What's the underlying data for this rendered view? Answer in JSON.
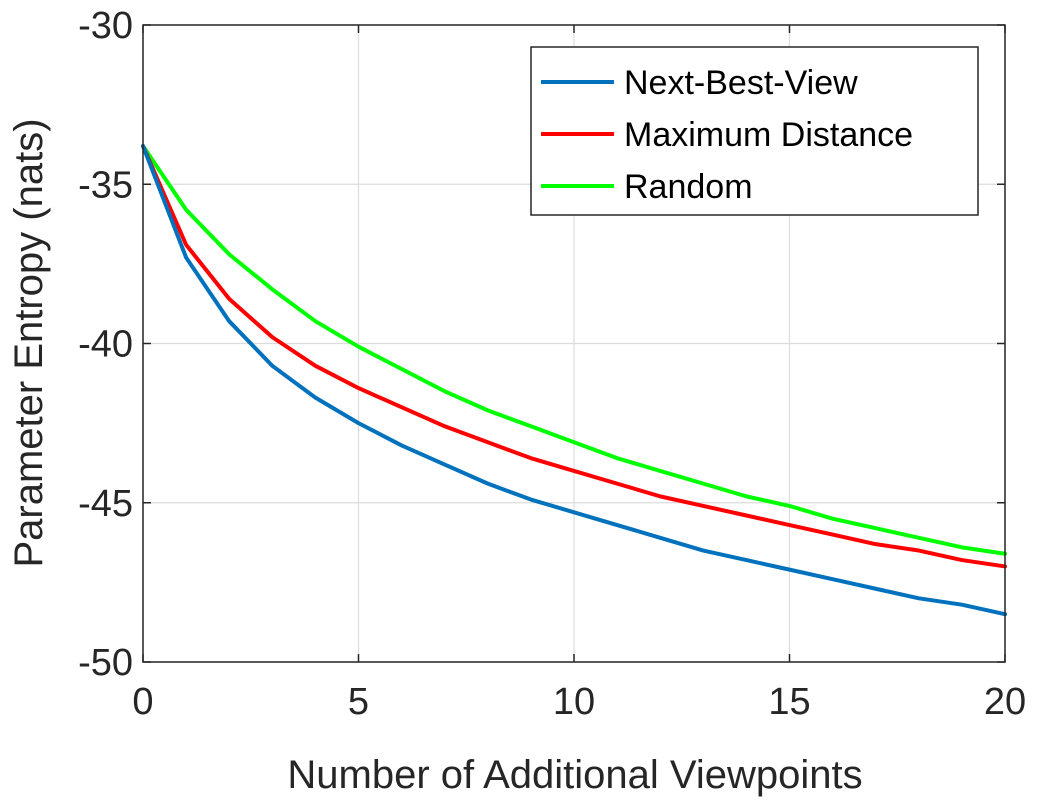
{
  "chart_data": {
    "type": "line",
    "title": "",
    "xlabel": "Number of Additional Viewpoints",
    "ylabel": "Parameter Entropy (nats)",
    "xlim": [
      0,
      20
    ],
    "ylim": [
      -50,
      -30
    ],
    "xticks": [
      0,
      5,
      10,
      15,
      20
    ],
    "yticks": [
      -30,
      -35,
      -40,
      -45,
      -50
    ],
    "grid": true,
    "legend_position": "top-right",
    "x": [
      0,
      1,
      2,
      3,
      4,
      5,
      6,
      7,
      8,
      9,
      10,
      11,
      12,
      13,
      14,
      15,
      16,
      17,
      18,
      19,
      20
    ],
    "series": [
      {
        "name": "Next-Best-View",
        "color": "#0072BD",
        "values": [
          -33.8,
          -37.3,
          -39.3,
          -40.7,
          -41.7,
          -42.5,
          -43.2,
          -43.8,
          -44.4,
          -44.9,
          -45.3,
          -45.7,
          -46.1,
          -46.5,
          -46.8,
          -47.1,
          -47.4,
          -47.7,
          -48.0,
          -48.2,
          -48.5
        ]
      },
      {
        "name": "Maximum Distance",
        "color": "#FF0000",
        "values": [
          -33.8,
          -36.9,
          -38.6,
          -39.8,
          -40.7,
          -41.4,
          -42.0,
          -42.6,
          -43.1,
          -43.6,
          -44.0,
          -44.4,
          -44.8,
          -45.1,
          -45.4,
          -45.7,
          -46.0,
          -46.3,
          -46.5,
          -46.8,
          -47.0
        ]
      },
      {
        "name": "Random",
        "color": "#00FF00",
        "values": [
          -33.8,
          -35.8,
          -37.2,
          -38.3,
          -39.3,
          -40.1,
          -40.8,
          -41.5,
          -42.1,
          -42.6,
          -43.1,
          -43.6,
          -44.0,
          -44.4,
          -44.8,
          -45.1,
          -45.5,
          -45.8,
          -46.1,
          -46.4,
          -46.6
        ]
      }
    ]
  }
}
